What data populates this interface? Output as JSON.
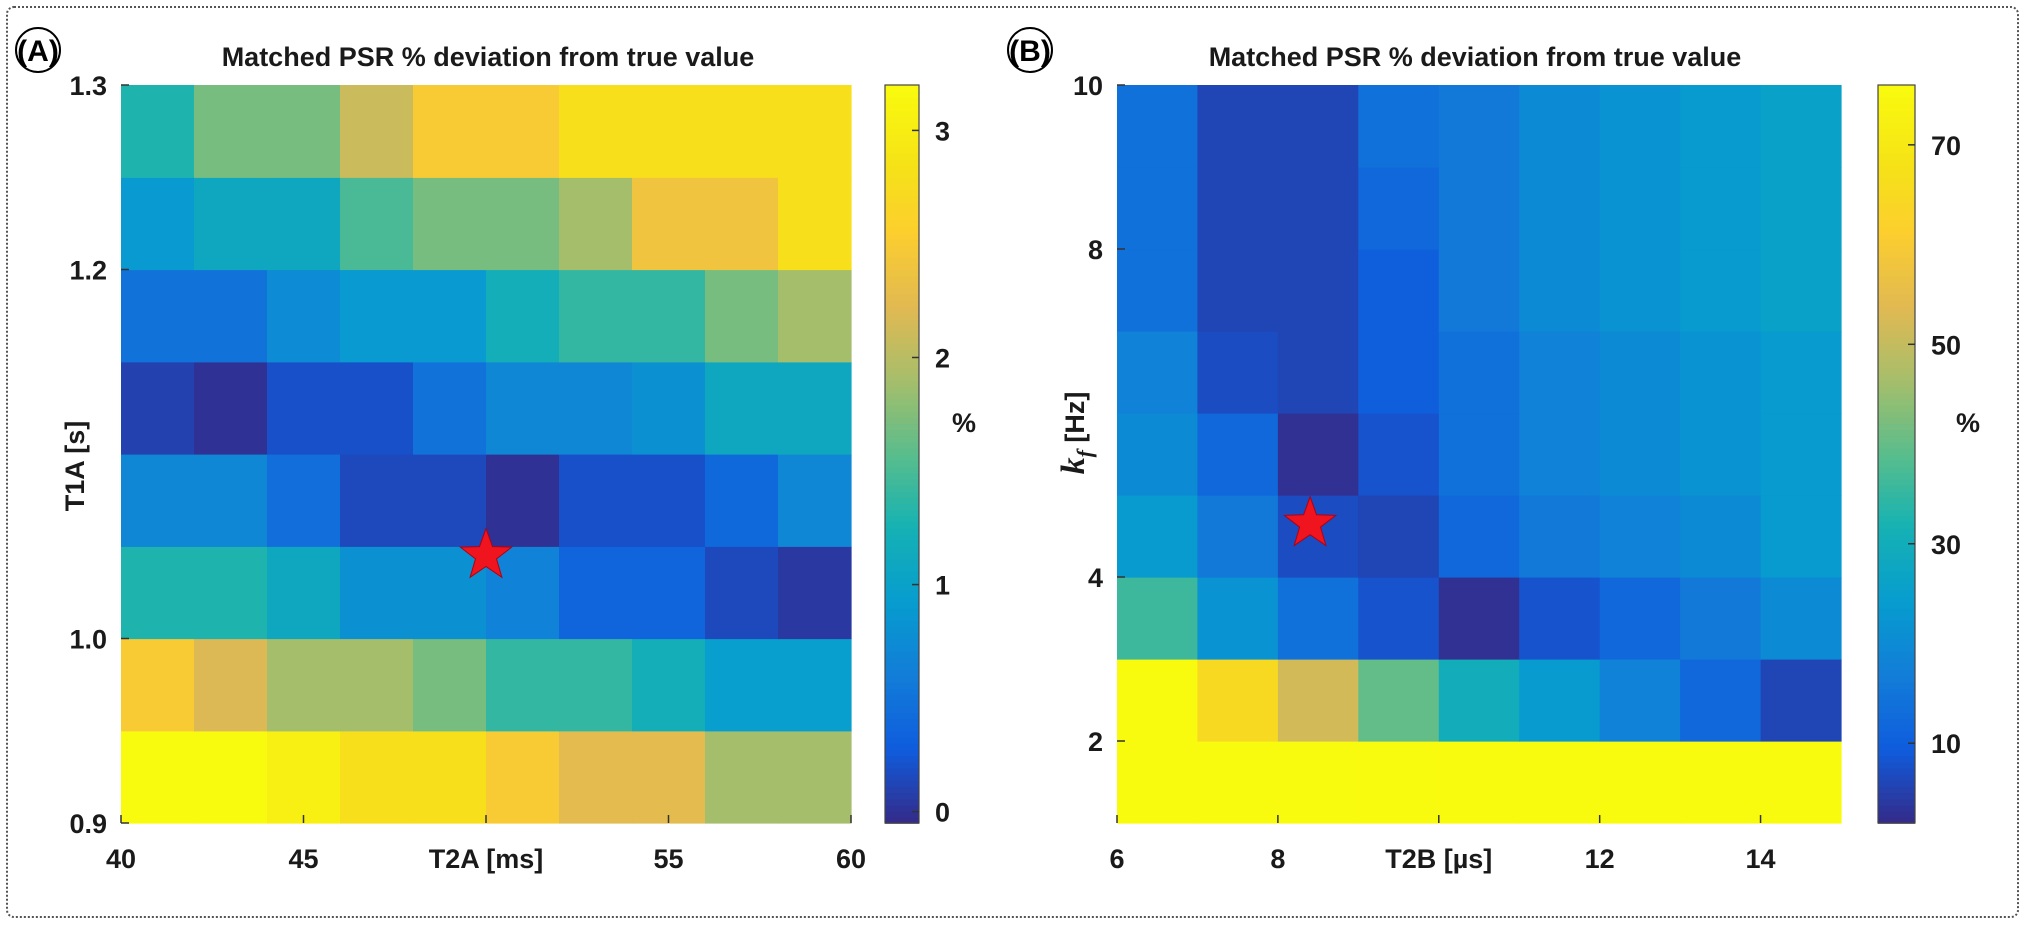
{
  "chart_data": [
    {
      "type": "heatmap",
      "panel": "(A)",
      "title": "Matched PSR % deviation from true value",
      "xlabel": "T2A [ms]",
      "ylabel": "T1A [s]",
      "colorbar_label": "%",
      "colormap": "parula",
      "x_ticks": [
        "40",
        "45",
        "T2A [ms]",
        "55",
        "60"
      ],
      "x_tick_values": [
        40,
        45,
        50,
        55,
        60
      ],
      "y_ticks": [
        "0.9",
        "1.0",
        "1.2",
        "1.3"
      ],
      "y_tick_values": [
        0.9,
        1.0,
        1.2,
        1.3
      ],
      "xlim": [
        40,
        60
      ],
      "ylim": [
        0.9,
        1.3
      ],
      "x_edges": [
        40,
        42,
        44,
        46,
        48,
        50,
        52,
        54,
        56,
        58,
        60
      ],
      "y_edges": [
        0.9,
        0.95,
        1.0,
        1.05,
        1.1,
        1.15,
        1.2,
        1.25,
        1.3
      ],
      "x_centers": [
        41,
        43,
        45,
        47,
        49,
        51,
        53,
        55,
        57,
        59
      ],
      "y_centers": [
        0.925,
        0.975,
        1.025,
        1.075,
        1.125,
        1.175,
        1.225,
        1.275
      ],
      "colorbar_ticks": [
        "0",
        "1",
        "2",
        "3"
      ],
      "colorbar_tick_values": [
        0,
        1,
        2,
        3
      ],
      "clim": [
        -0.05,
        3.2
      ],
      "values": [
        [
          3.2,
          3.2,
          3.05,
          2.8,
          2.8,
          2.5,
          2.25,
          2.25,
          1.9,
          1.9
        ],
        [
          2.5,
          2.2,
          1.9,
          1.9,
          1.7,
          1.4,
          1.4,
          1.2,
          0.95,
          0.95
        ],
        [
          1.3,
          1.3,
          1.1,
          0.8,
          0.8,
          0.65,
          0.35,
          0.35,
          0.15,
          0.05
        ],
        [
          0.7,
          0.7,
          0.45,
          0.15,
          0.15,
          0.0,
          0.2,
          0.2,
          0.4,
          0.7
        ],
        [
          0.1,
          0.0,
          0.2,
          0.2,
          0.5,
          0.7,
          0.7,
          0.8,
          1.1,
          1.1
        ],
        [
          0.5,
          0.5,
          0.75,
          0.9,
          0.9,
          1.2,
          1.4,
          1.4,
          1.7,
          1.9
        ],
        [
          0.9,
          1.1,
          1.1,
          1.5,
          1.7,
          1.7,
          1.9,
          2.4,
          2.4,
          2.8
        ],
        [
          1.3,
          1.7,
          1.7,
          2.1,
          2.5,
          2.5,
          2.8,
          2.8,
          2.8,
          2.8
        ]
      ],
      "marker": {
        "symbol": "red-star",
        "x": 50,
        "y": 1.045
      }
    },
    {
      "type": "heatmap",
      "panel": "(B)",
      "title": "Matched PSR % deviation from true value",
      "xlabel": "T2B [µs]",
      "ylabel": "k_f [Hz]",
      "colorbar_label": "%",
      "colormap": "parula",
      "x_ticks": [
        "6",
        "8",
        "T2B [µs]",
        "12",
        "14"
      ],
      "x_tick_values": [
        6,
        8,
        10,
        12,
        14
      ],
      "y_ticks": [
        "2",
        "4",
        "8",
        "10"
      ],
      "y_tick_values": [
        2,
        4,
        8,
        10
      ],
      "xlim": [
        6,
        15
      ],
      "ylim": [
        1,
        10
      ],
      "x_edges": [
        6,
        7,
        8,
        9,
        10,
        11,
        12,
        13,
        14,
        15
      ],
      "y_edges": [
        1,
        2,
        3,
        4,
        5,
        6,
        7,
        8,
        9,
        10
      ],
      "x_centers": [
        6.5,
        7.5,
        8.5,
        9.5,
        10.5,
        11.5,
        12.5,
        13.5,
        14.5
      ],
      "y_centers": [
        1.5,
        2.5,
        3.5,
        4.5,
        5.5,
        6.5,
        7.5,
        8.5,
        9.5
      ],
      "colorbar_ticks": [
        "10",
        "30",
        "50",
        "70"
      ],
      "colorbar_tick_values": [
        10,
        30,
        50,
        70
      ],
      "clim": [
        2,
        76
      ],
      "values": [
        [
          76,
          76,
          76,
          76,
          76,
          76,
          76,
          76,
          76
        ],
        [
          76,
          65,
          52,
          40,
          30,
          24,
          18,
          12,
          6
        ],
        [
          36,
          22,
          14,
          8,
          3,
          8,
          12,
          16,
          20
        ],
        [
          24,
          16,
          7,
          6,
          12,
          16,
          18,
          20,
          24
        ],
        [
          20,
          12,
          3,
          8,
          14,
          18,
          20,
          22,
          24
        ],
        [
          18,
          7,
          6,
          10,
          14,
          18,
          20,
          22,
          24
        ],
        [
          14,
          6,
          6,
          10,
          16,
          20,
          22,
          24,
          26
        ],
        [
          14,
          6,
          6,
          12,
          16,
          20,
          22,
          24,
          26
        ],
        [
          14,
          6,
          6,
          14,
          16,
          20,
          22,
          24,
          26
        ]
      ],
      "marker": {
        "symbol": "red-star",
        "x": 8.4,
        "y": 4.65
      }
    }
  ]
}
